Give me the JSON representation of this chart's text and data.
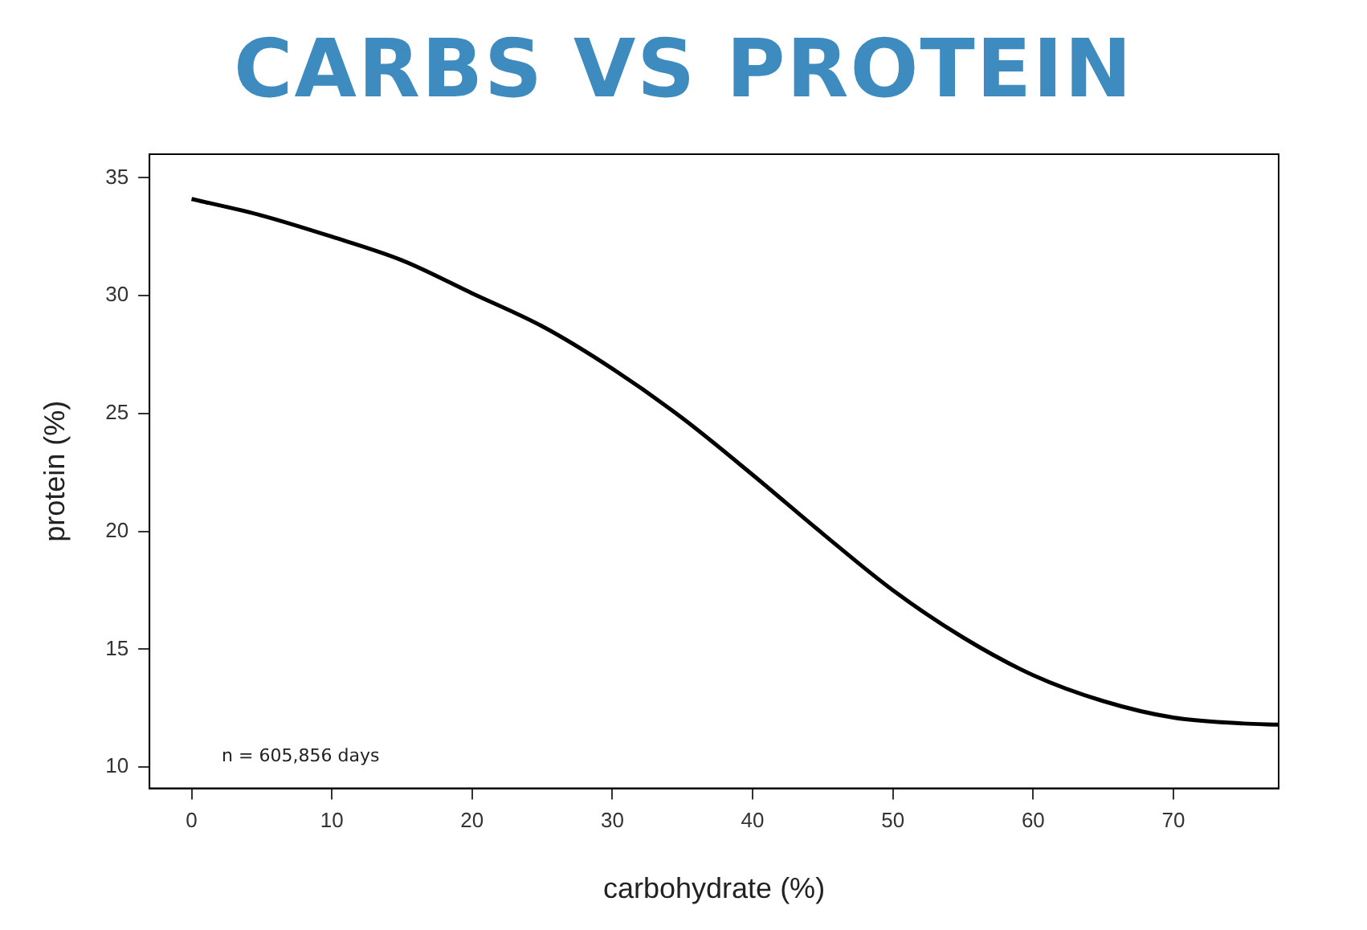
{
  "chart_data": {
    "type": "line",
    "title": "CARBS VS PROTEIN",
    "xlabel": "carbohydrate (%)",
    "ylabel": "protein (%)",
    "annotations": [
      "n = 605,856 days"
    ],
    "series": [
      {
        "color": "#000000",
        "x": [
          0,
          5,
          10,
          15,
          20,
          25,
          30,
          35,
          40,
          45,
          50,
          55,
          60,
          65,
          70,
          75,
          77.5
        ],
        "values": [
          34.1,
          33.4,
          32.5,
          31.5,
          30.1,
          28.7,
          26.9,
          24.8,
          22.4,
          19.9,
          17.5,
          15.5,
          13.9,
          12.8,
          12.1,
          11.85,
          11.8
        ]
      }
    ],
    "xlim": [
      -3,
      77.5
    ],
    "ylim": [
      9.1,
      36
    ],
    "xticks": [
      0,
      10,
      20,
      30,
      40,
      50,
      60,
      70
    ],
    "yticks": [
      10,
      15,
      20,
      25,
      30,
      35
    ],
    "grid": false,
    "legend": false,
    "marker": "none",
    "line_style": "solid"
  }
}
